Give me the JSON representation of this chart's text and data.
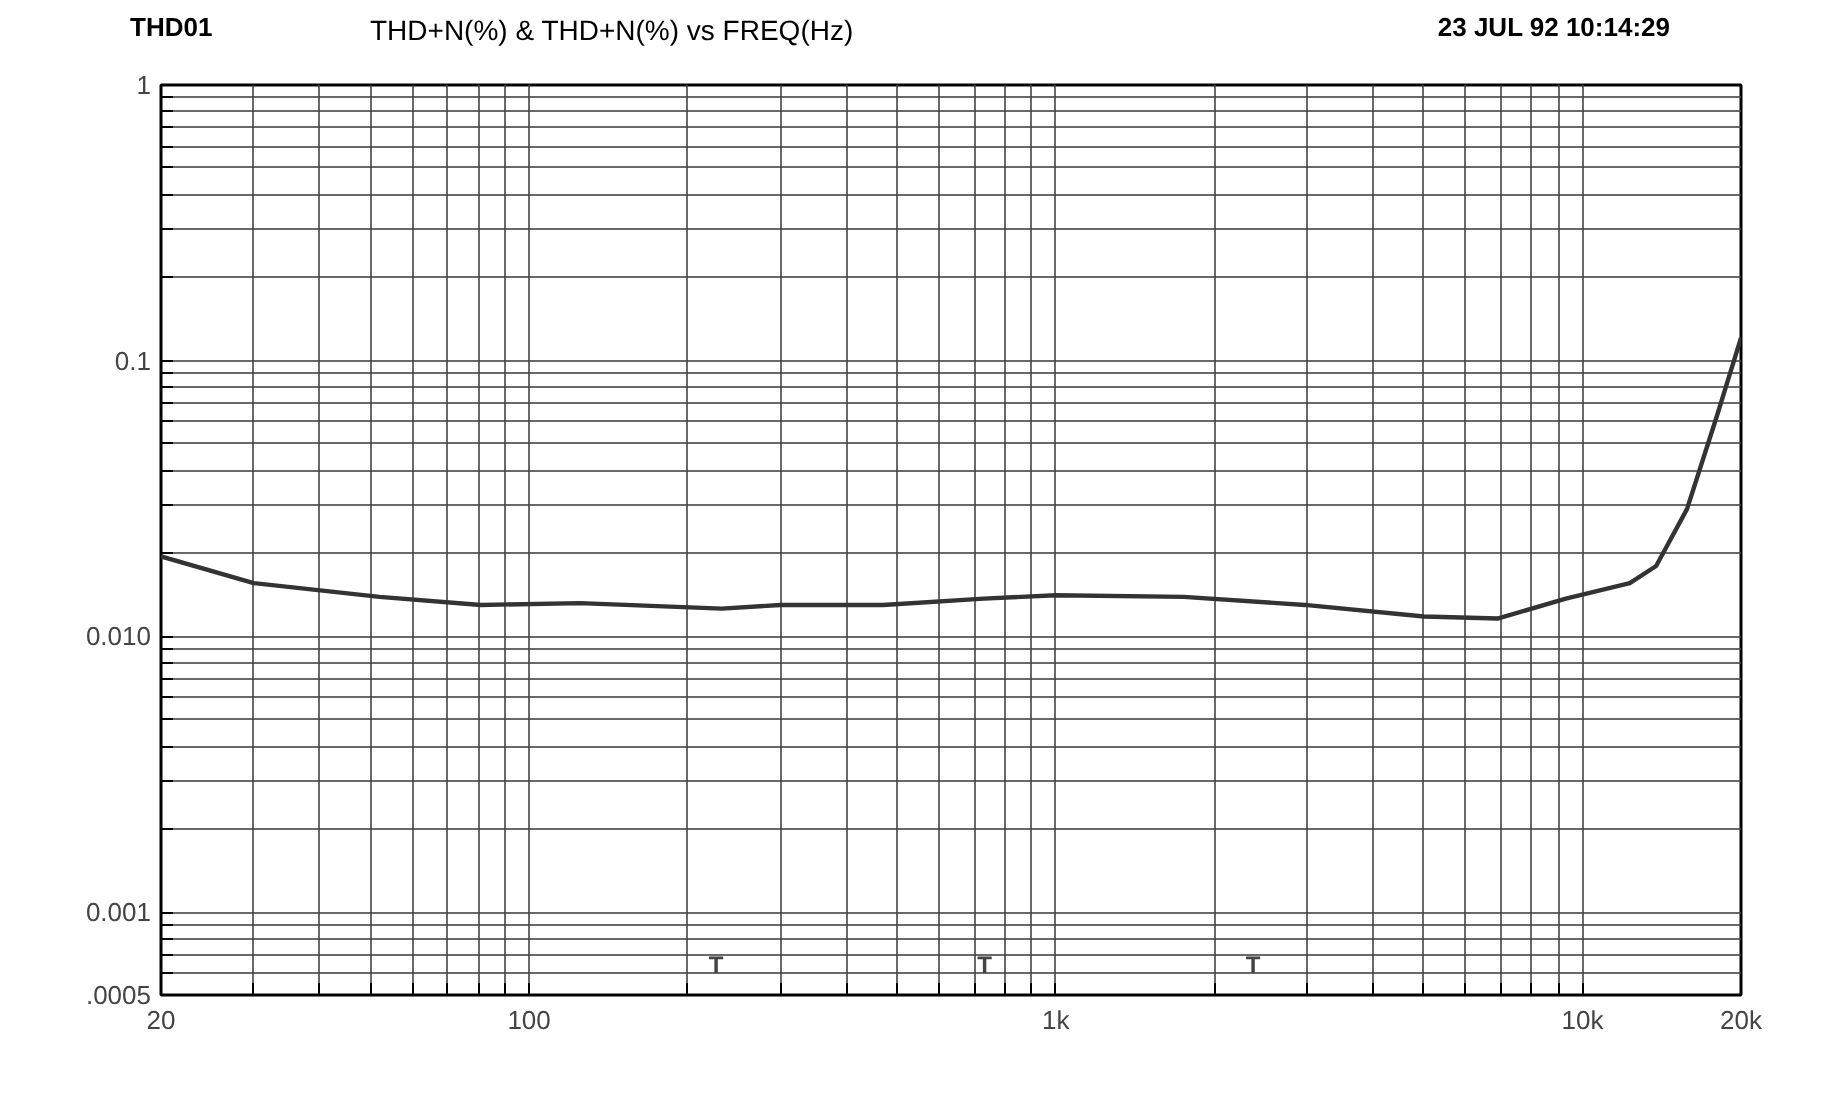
{
  "chart_data": {
    "type": "line",
    "title": "THD+N(%) & THD+N(%) vs FREQ(Hz)",
    "subtitle": "THD01",
    "annotations": [
      "23 JUL 92 10:14:29",
      "T",
      "T",
      "T"
    ],
    "log": "xy",
    "grid": true,
    "line_style": "solid",
    "marker": "none",
    "xlim": [
      20,
      20000
    ],
    "ylim": [
      0.0005,
      1
    ],
    "xticks": [
      20,
      {
        "value": 30,
        "label": null
      },
      {
        "value": 40,
        "label": null
      },
      {
        "value": 50,
        "label": null
      },
      {
        "value": 60,
        "label": null
      },
      {
        "value": 70,
        "label": null
      },
      {
        "value": 80,
        "label": null
      },
      {
        "value": 90,
        "label": null
      },
      100,
      {
        "value": 200,
        "label": null
      },
      {
        "value": 300,
        "label": null
      },
      {
        "value": 400,
        "label": null
      },
      {
        "value": 500,
        "label": null
      },
      {
        "value": 600,
        "label": null
      },
      {
        "value": 700,
        "label": null
      },
      {
        "value": 800,
        "label": null
      },
      {
        "value": 900,
        "label": null
      },
      {
        "value": 1000,
        "label": "1k"
      },
      {
        "value": 2000,
        "label": null
      },
      {
        "value": 3000,
        "label": null
      },
      {
        "value": 4000,
        "label": null
      },
      {
        "value": 5000,
        "label": null
      },
      {
        "value": 6000,
        "label": null
      },
      {
        "value": 7000,
        "label": null
      },
      {
        "value": 8000,
        "label": null
      },
      {
        "value": 9000,
        "label": null
      },
      {
        "value": 10000,
        "label": "10k"
      },
      {
        "value": 20000,
        "label": "20k"
      }
    ],
    "yticks": [
      {
        "value": 0.0005,
        "label": ".0005"
      },
      {
        "value": 0.0006,
        "label": null
      },
      {
        "value": 0.0007,
        "label": null
      },
      {
        "value": 0.0008,
        "label": null
      },
      {
        "value": 0.0009,
        "label": null
      },
      0.001,
      {
        "value": 0.002,
        "label": null
      },
      {
        "value": 0.003,
        "label": null
      },
      {
        "value": 0.004,
        "label": null
      },
      {
        "value": 0.005,
        "label": null
      },
      {
        "value": 0.006,
        "label": null
      },
      {
        "value": 0.007,
        "label": null
      },
      {
        "value": 0.008,
        "label": null
      },
      {
        "value": 0.009,
        "label": null
      },
      {
        "value": 0.01,
        "label": "0.010"
      },
      {
        "value": 0.02,
        "label": null
      },
      {
        "value": 0.03,
        "label": null
      },
      {
        "value": 0.04,
        "label": null
      },
      {
        "value": 0.05,
        "label": null
      },
      {
        "value": 0.06,
        "label": null
      },
      {
        "value": 0.07,
        "label": null
      },
      {
        "value": 0.08,
        "label": null
      },
      {
        "value": 0.09,
        "label": null
      },
      0.1,
      {
        "value": 0.2,
        "label": null
      },
      {
        "value": 0.3,
        "label": null
      },
      {
        "value": 0.4,
        "label": null
      },
      {
        "value": 0.5,
        "label": null
      },
      {
        "value": 0.6,
        "label": null
      },
      {
        "value": 0.7,
        "label": null
      },
      {
        "value": 0.8,
        "label": null
      },
      {
        "value": 0.9,
        "label": null
      },
      1
    ],
    "x": [
      20,
      30,
      52,
      81,
      125,
      232,
      300,
      470,
      730,
      1000,
      1750,
      2970,
      5000,
      6900,
      9300,
      12300,
      13800,
      15800,
      18000,
      20000
    ],
    "series": [
      {
        "color": "#333333",
        "values": [
          0.0195,
          0.0156,
          0.0139,
          0.013,
          0.0132,
          0.0126,
          0.013,
          0.013,
          0.0137,
          0.0141,
          0.0139,
          0.013,
          0.0118,
          0.0116,
          0.0137,
          0.0156,
          0.018,
          0.029,
          0.063,
          0.121
        ]
      }
    ]
  }
}
